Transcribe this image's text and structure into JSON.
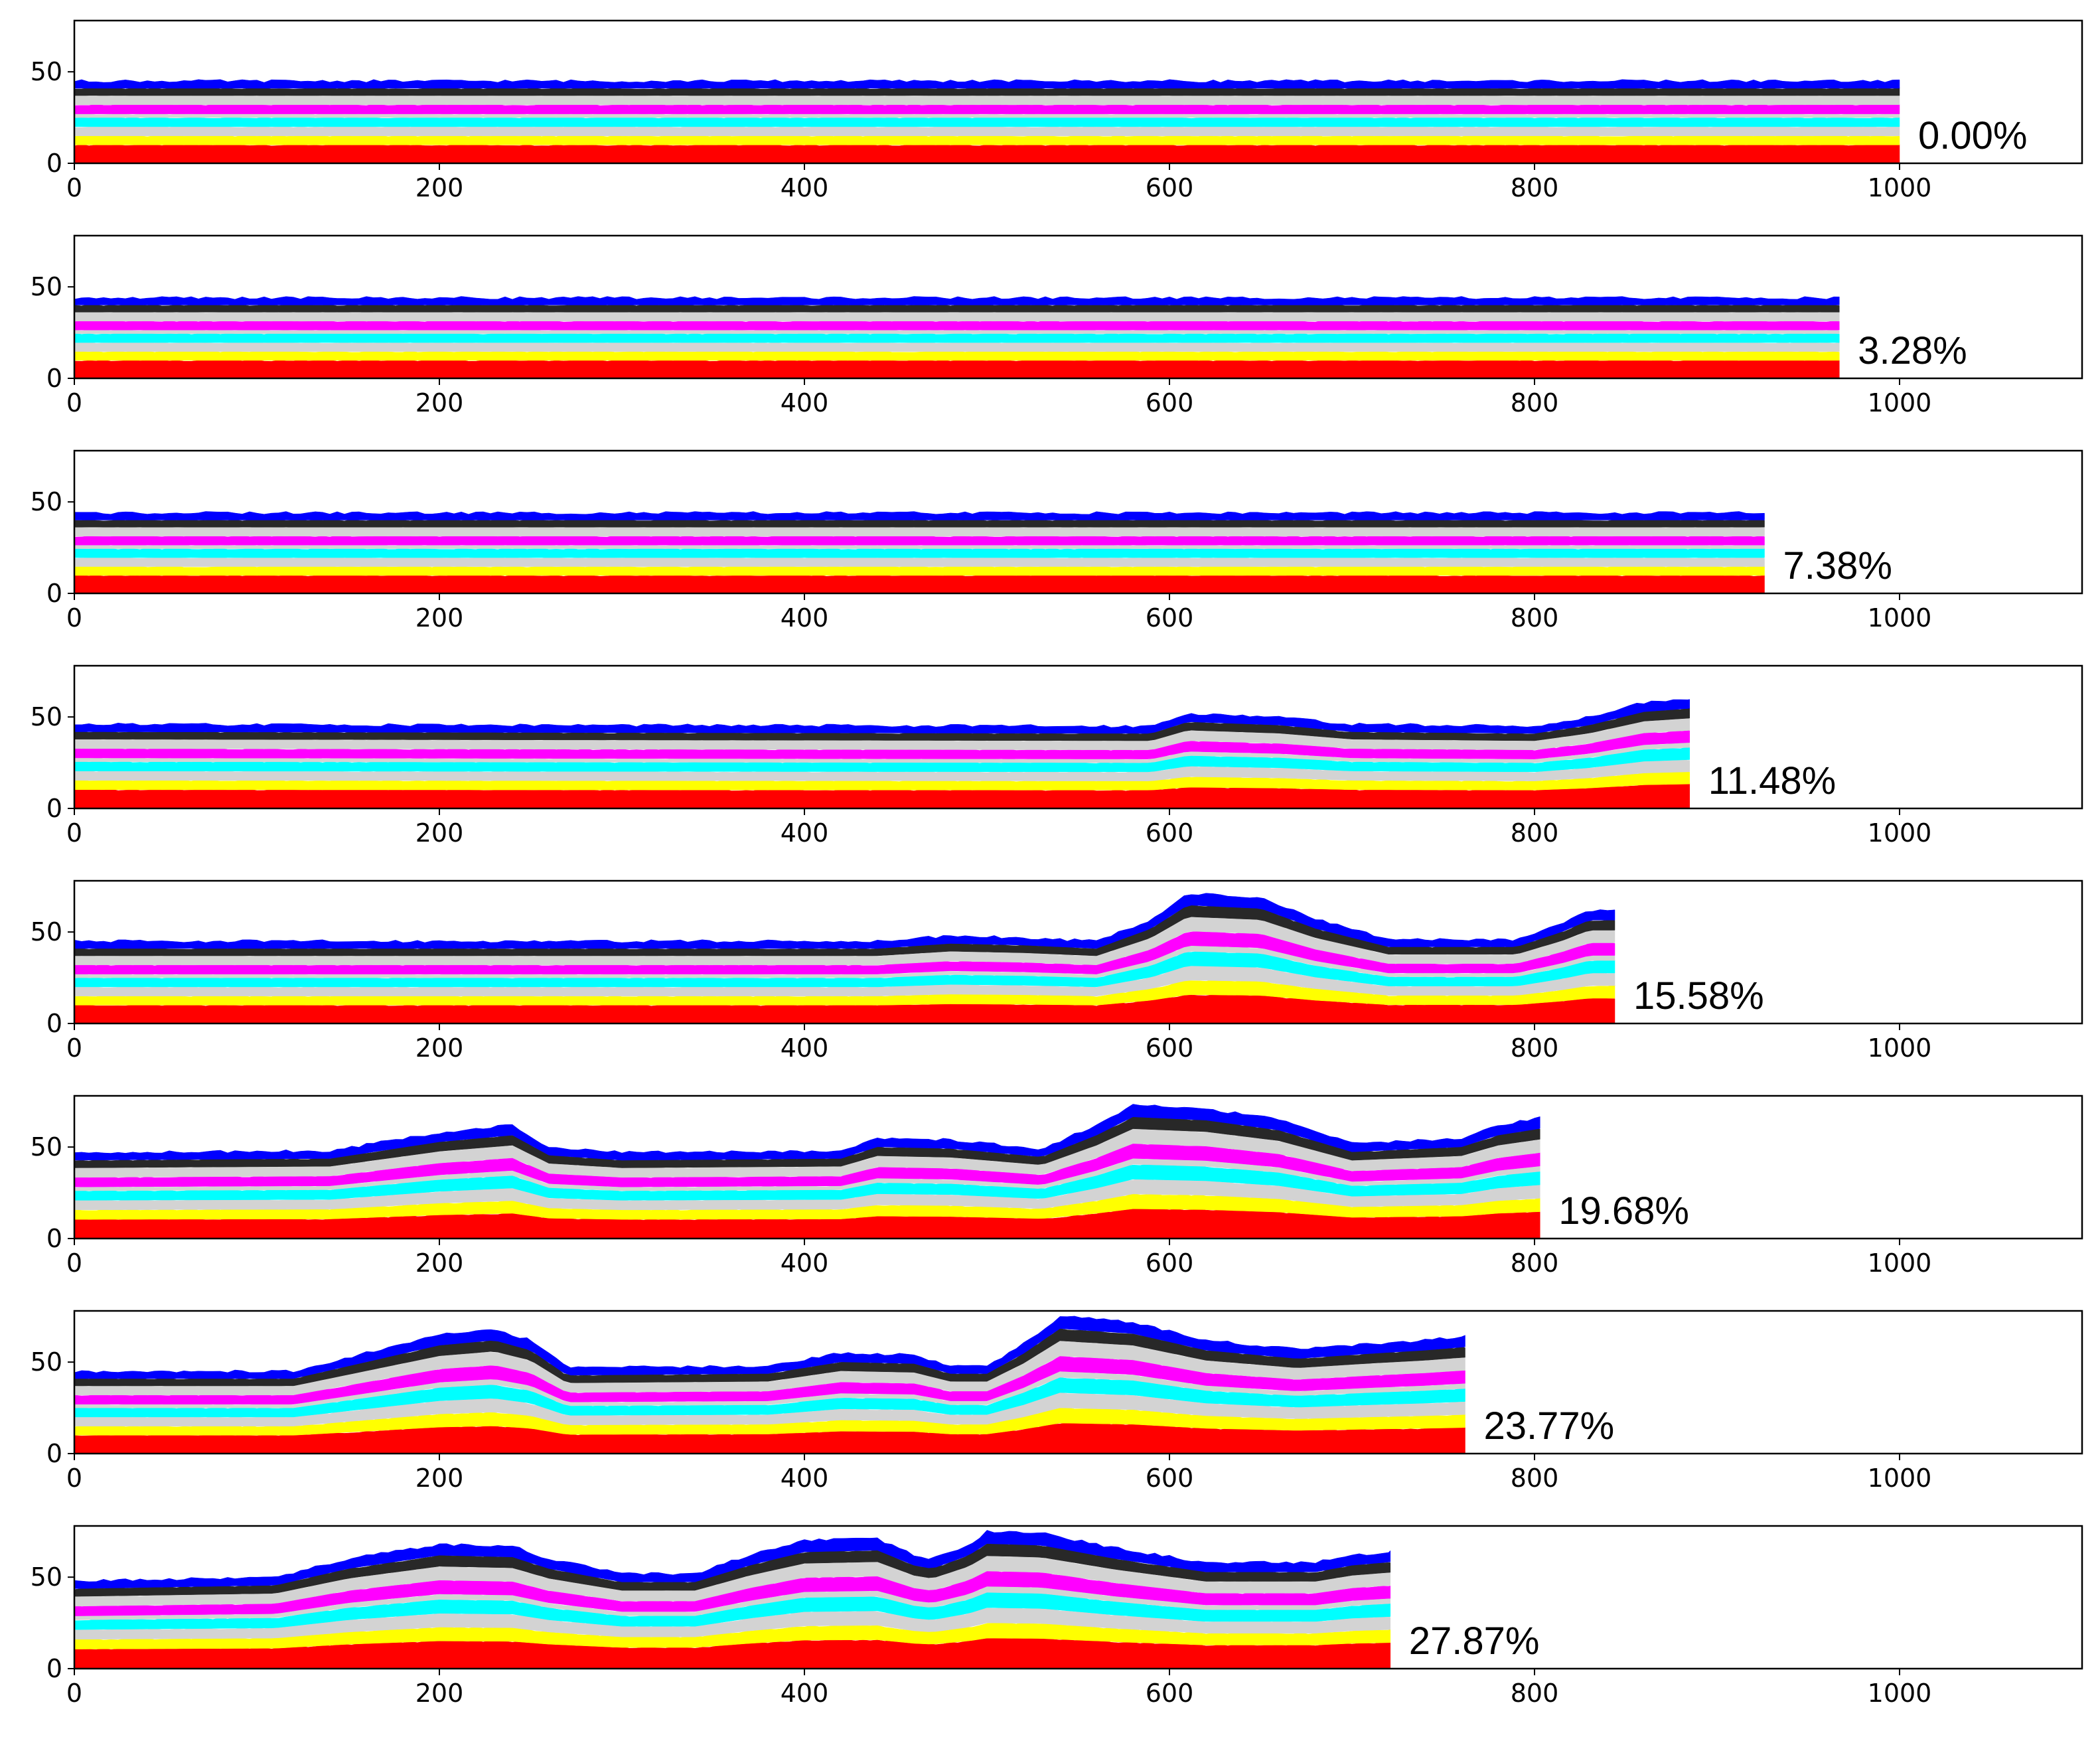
{
  "chart_data": {
    "type": "area",
    "xlim": [
      0,
      1100
    ],
    "ylim": [
      0,
      78
    ],
    "x_ticks": [
      "0",
      "200",
      "400",
      "600",
      "800",
      "1000"
    ],
    "y_ticks": [
      "0",
      "50"
    ],
    "legend": "none",
    "layers": [
      {
        "color": "#ff0000",
        "bottom": 0,
        "top": 10
      },
      {
        "color": "#ffff00",
        "bottom": 10,
        "top": 15
      },
      {
        "color": "#d3d3d3",
        "bottom": 15,
        "top": 20
      },
      {
        "color": "#00ffff",
        "bottom": 20,
        "top": 25
      },
      {
        "color": "#d3d3d3",
        "bottom": 25,
        "top": 27
      },
      {
        "color": "#ff00ff",
        "bottom": 27,
        "top": 32
      },
      {
        "color": "#d3d3d3",
        "bottom": 32,
        "top": 37
      },
      {
        "color": "#282828",
        "bottom": 37,
        "top": 41
      },
      {
        "color": "#0000ff",
        "bottom": 41,
        "top": 45
      }
    ],
    "panels": [
      {
        "strain_label": "0.00%",
        "x_end": 1000,
        "surface": [
          [
            0,
            45
          ],
          [
            1000,
            45
          ]
        ]
      },
      {
        "strain_label": "3.28%",
        "x_end": 967,
        "surface": [
          [
            0,
            44
          ],
          [
            967,
            44
          ]
        ]
      },
      {
        "strain_label": "7.38%",
        "x_end": 926,
        "surface": [
          [
            0,
            44
          ],
          [
            926,
            44
          ]
        ]
      },
      {
        "strain_label": "11.48%",
        "x_end": 885,
        "surface": [
          [
            0,
            46
          ],
          [
            590,
            45
          ],
          [
            610,
            52
          ],
          [
            660,
            50
          ],
          [
            700,
            46
          ],
          [
            800,
            45
          ],
          [
            830,
            50
          ],
          [
            860,
            58
          ],
          [
            885,
            60
          ]
        ]
      },
      {
        "strain_label": "15.58%",
        "x_end": 844,
        "surface": [
          [
            0,
            45
          ],
          [
            440,
            45
          ],
          [
            480,
            48
          ],
          [
            520,
            47
          ],
          [
            560,
            45
          ],
          [
            590,
            57
          ],
          [
            610,
            71
          ],
          [
            650,
            69
          ],
          [
            680,
            57
          ],
          [
            720,
            46
          ],
          [
            790,
            46
          ],
          [
            815,
            55
          ],
          [
            830,
            62
          ],
          [
            844,
            62
          ]
        ]
      },
      {
        "strain_label": "19.68%",
        "x_end": 803,
        "surface": [
          [
            0,
            47
          ],
          [
            140,
            48
          ],
          [
            200,
            58
          ],
          [
            240,
            62
          ],
          [
            260,
            50
          ],
          [
            300,
            47
          ],
          [
            420,
            48
          ],
          [
            440,
            55
          ],
          [
            480,
            54
          ],
          [
            500,
            52
          ],
          [
            530,
            49
          ],
          [
            560,
            62
          ],
          [
            580,
            73
          ],
          [
            620,
            71
          ],
          [
            660,
            65
          ],
          [
            700,
            52
          ],
          [
            760,
            55
          ],
          [
            780,
            62
          ],
          [
            803,
            66
          ]
        ]
      },
      {
        "strain_label": "23.77%",
        "x_end": 762,
        "surface": [
          [
            0,
            45
          ],
          [
            120,
            45
          ],
          [
            160,
            55
          ],
          [
            200,
            65
          ],
          [
            230,
            68
          ],
          [
            250,
            62
          ],
          [
            270,
            47
          ],
          [
            380,
            48
          ],
          [
            420,
            55
          ],
          [
            460,
            54
          ],
          [
            480,
            48
          ],
          [
            500,
            48
          ],
          [
            520,
            60
          ],
          [
            540,
            75
          ],
          [
            580,
            72
          ],
          [
            620,
            62
          ],
          [
            670,
            57
          ],
          [
            710,
            60
          ],
          [
            740,
            62
          ],
          [
            762,
            64
          ]
        ]
      },
      {
        "strain_label": "27.87%",
        "x_end": 721,
        "surface": [
          [
            0,
            48
          ],
          [
            110,
            50
          ],
          [
            150,
            60
          ],
          [
            200,
            68
          ],
          [
            240,
            67
          ],
          [
            260,
            60
          ],
          [
            300,
            52
          ],
          [
            340,
            52
          ],
          [
            370,
            62
          ],
          [
            400,
            70
          ],
          [
            440,
            71
          ],
          [
            460,
            62
          ],
          [
            470,
            60
          ],
          [
            490,
            68
          ],
          [
            500,
            75
          ],
          [
            530,
            74
          ],
          [
            570,
            66
          ],
          [
            620,
            58
          ],
          [
            680,
            58
          ],
          [
            700,
            62
          ],
          [
            721,
            64
          ]
        ]
      }
    ]
  }
}
